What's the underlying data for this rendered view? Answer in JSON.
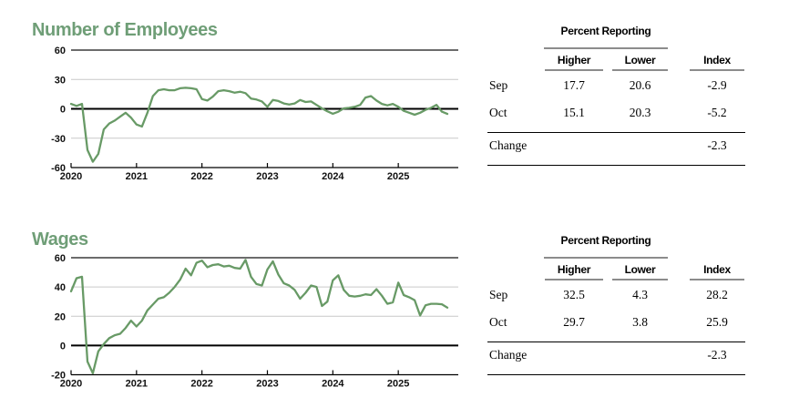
{
  "colors": {
    "title_green": "#6f9e77",
    "line_green": "#689a66",
    "grid_light": "#c9c9c9",
    "top_line_dark": "#3c3c3c",
    "zero_black": "#000000",
    "axis_black": "#000000",
    "rule_gray": "#8c8c8c",
    "rule_black": "#000000",
    "text_dark": "#111111"
  },
  "sections": [
    {
      "table": {
        "group_header": "Percent Reporting",
        "columns": [
          "Higher",
          "Lower",
          "Index"
        ],
        "rows": [
          {
            "label": "Sep",
            "higher": "17.7",
            "lower": "20.6",
            "index": "-2.9"
          },
          {
            "label": "Oct",
            "higher": "15.1",
            "lower": "20.3",
            "index": "-5.2"
          }
        ],
        "change_row": {
          "label": "Change",
          "index": "-2.3"
        }
      }
    },
    {
      "table": {
        "group_header": "Percent Reporting",
        "columns": [
          "Higher",
          "Lower",
          "Index"
        ],
        "rows": [
          {
            "label": "Sep",
            "higher": "32.5",
            "lower": "4.3",
            "index": "28.2"
          },
          {
            "label": "Oct",
            "higher": "29.7",
            "lower": "3.8",
            "index": "25.9"
          }
        ],
        "change_row": {
          "label": "Change",
          "index": "-2.3"
        }
      }
    }
  ],
  "chart_data": [
    {
      "type": "line",
      "title": "Number of Employees",
      "x_tick_labels": [
        "2020",
        "2021",
        "2022",
        "2023",
        "2024",
        "2025"
      ],
      "x_start_month": "2020-01",
      "x_end_month": "2025-10",
      "x_domain_months": 71,
      "ylim": [
        -60,
        60
      ],
      "yticks": [
        60,
        30,
        0,
        -30,
        -60
      ],
      "grid": "horizontal",
      "legend": "none",
      "values": [
        5,
        3,
        5,
        -42,
        -54,
        -46,
        -21,
        -15,
        -12,
        -8,
        -4,
        -9,
        -16,
        -18,
        -4,
        13,
        19,
        20,
        19,
        19,
        21,
        21.5,
        21,
        20,
        10,
        8.5,
        12.5,
        18,
        19,
        18,
        16.5,
        17.5,
        16,
        10.5,
        9.5,
        7.5,
        2,
        9,
        8,
        5.5,
        4.5,
        5.5,
        9,
        7,
        7.5,
        4,
        0.5,
        -2.5,
        -5,
        -3,
        0.5,
        1,
        2,
        4,
        11.5,
        13,
        8.5,
        5,
        3.5,
        5,
        2,
        -2,
        -4,
        -6,
        -4,
        -1,
        1,
        4,
        -2.9,
        -5.2
      ]
    },
    {
      "type": "line",
      "title": "Wages",
      "x_tick_labels": [
        "2020",
        "2021",
        "2022",
        "2023",
        "2024",
        "2025"
      ],
      "x_start_month": "2020-01",
      "x_end_month": "2025-10",
      "x_domain_months": 71,
      "ylim": [
        -20,
        60
      ],
      "yticks": [
        60,
        40,
        20,
        0,
        -20
      ],
      "grid": "horizontal",
      "legend": "none",
      "values": [
        37,
        46,
        47,
        -11,
        -19,
        -4,
        1,
        5,
        7,
        8,
        12,
        17,
        13,
        17,
        24,
        28,
        32,
        33,
        36,
        40,
        45,
        52.5,
        48,
        56.5,
        58,
        53.5,
        55,
        55.5,
        54,
        54.5,
        53,
        52.5,
        58.5,
        47,
        42,
        41,
        52,
        57.5,
        48.5,
        42.5,
        41,
        38,
        32,
        36,
        41,
        40,
        27,
        30,
        44.5,
        48,
        38,
        34,
        33.5,
        34,
        35,
        34.5,
        38.5,
        34,
        28.5,
        29.5,
        43,
        34.5,
        33,
        31,
        20.5,
        27.5,
        28.5,
        28.5,
        28.2,
        25.9
      ]
    }
  ]
}
